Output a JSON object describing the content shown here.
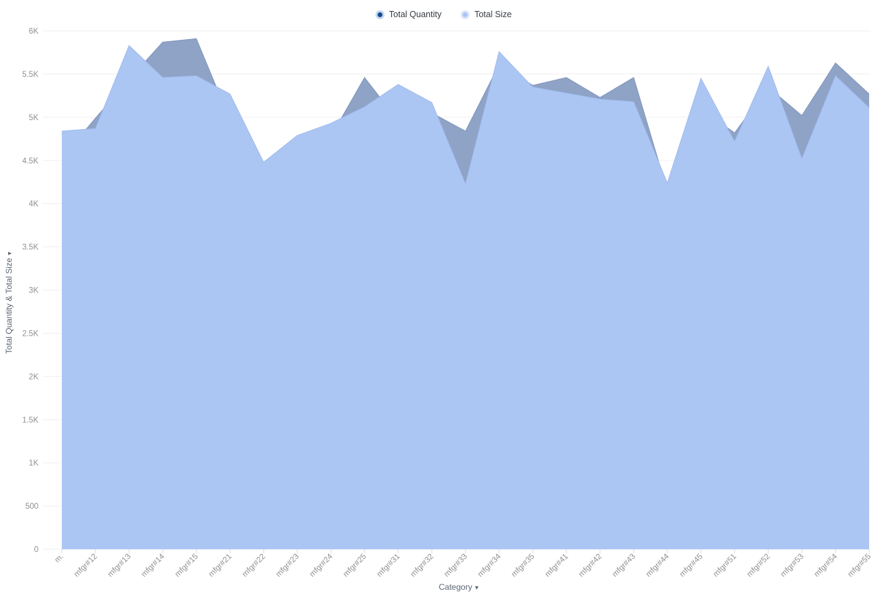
{
  "legend": {
    "items": [
      {
        "label": "Total Quantity",
        "marker_color": "#17498C",
        "marker_ring": "#C5D7F3"
      },
      {
        "label": "Total Size",
        "marker_color": "#A9C4F4",
        "marker_ring": "#DCE7FB"
      }
    ]
  },
  "axes": {
    "y_title": "Total Quantity & Total Size",
    "x_title": "Category",
    "caret": "▾",
    "y_tick_labels": [
      "0",
      "500",
      "1K",
      "1.5K",
      "2K",
      "2.5K",
      "3K",
      "3.5K",
      "4K",
      "4.5K",
      "5K",
      "5.5K",
      "6K"
    ]
  },
  "colors": {
    "size_fill": "#ACC6F4",
    "size_line": "#9FB9EC",
    "quantity_fill": "#8FA3C6",
    "quantity_line": "#8296BC",
    "grid": "#EFEFEF",
    "tick_text": "#8F8F8F",
    "tick_line": "#D5D9E0",
    "axis_title_text": "#5D6673",
    "legend_text": "#343A40"
  },
  "chart_data": {
    "type": "area",
    "title": "",
    "xlabel": "Category",
    "ylabel": "Total Quantity & Total Size",
    "categories": [
      "m.",
      "mfgr#12",
      "mfgr#13",
      "mfgr#14",
      "mfgr#15",
      "mfgr#21",
      "mfgr#22",
      "mfgr#23",
      "mfgr#24",
      "mfgr#25",
      "mfgr#31",
      "mfgr#32",
      "mfgr#33",
      "mfgr#34",
      "mfgr#35",
      "mfgr#41",
      "mfgr#42",
      "mfgr#43",
      "mfgr#44",
      "mfgr#45",
      "mfgr#51",
      "mfgr#52",
      "mfgr#53",
      "mfgr#54",
      "mfgr#55"
    ],
    "series": [
      {
        "name": "Total Quantity",
        "values": [
          4530,
          4990,
          5440,
          5870,
          5910,
          4970,
          4300,
          4600,
          4780,
          5460,
          4960,
          5050,
          4840,
          5610,
          5370,
          5460,
          5230,
          5460,
          4150,
          5100,
          4820,
          5350,
          5020,
          5630,
          5270
        ]
      },
      {
        "name": "Total Size",
        "values": [
          4840,
          4870,
          5830,
          5460,
          5480,
          5270,
          4480,
          4790,
          4930,
          5120,
          5380,
          5170,
          4230,
          5760,
          5350,
          5280,
          5210,
          5180,
          4240,
          5450,
          4720,
          5590,
          4520,
          5480,
          5110
        ]
      }
    ],
    "ylim": [
      0,
      6000
    ],
    "y_tick_step": 500,
    "grid": "on",
    "legend_position": "top-center",
    "note": "overlapping (non-stacked) areas; Total Size drawn on top of Total Quantity"
  }
}
